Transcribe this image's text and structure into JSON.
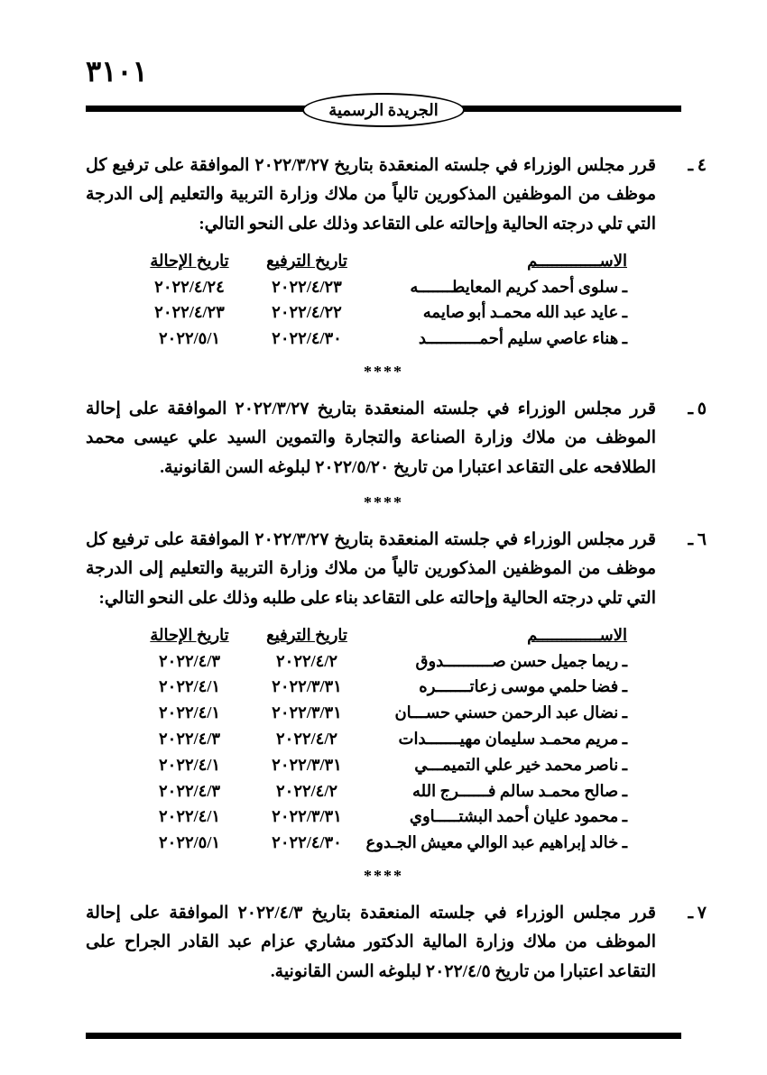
{
  "page_number": "٣١٠١",
  "masthead": "الجريدة الرسمية",
  "separator": "****",
  "items": [
    {
      "num": "٤ ـ",
      "text": "قرر مجلس الوزراء في جلسته المنعقدة بتاريخ ٢٠٢٢/٣/٢٧ الموافقة على ترفيع كل موظف من الموظفين المذكورين تالياً من ملاك وزارة التربية والتعليم إلى الدرجة التي تلي درجته الحالية وإحالته على التقاعد وذلك على النحو التالي:",
      "table": {
        "headers": {
          "name": "الاســـــــــــــم",
          "d1": "تاريخ الترفيع",
          "d2": "تاريخ الإحالة"
        },
        "rows": [
          {
            "name": "ـ سلوى أحمد كريم المعايطـــــــه",
            "d1": "٢٠٢٢/٤/٢٣",
            "d2": "٢٠٢٢/٤/٢٤"
          },
          {
            "name": "ـ عايد عبد الله محمـد أبو صايمه",
            "d1": "٢٠٢٢/٤/٢٢",
            "d2": "٢٠٢٢/٤/٢٣"
          },
          {
            "name": "ـ هناء عاصي سليم أحمـــــــــــد",
            "d1": "٢٠٢٢/٤/٣٠",
            "d2": "٢٠٢٢/٥/١"
          }
        ]
      }
    },
    {
      "num": "٥ ـ",
      "text": "قرر مجلس الوزراء في جلسته المنعقدة بتاريخ ٢٠٢٢/٣/٢٧ الموافقة على إحالة الموظف من ملاك وزارة الصناعة والتجارة والتموين السيد علي عيسى محمد الطلافحه على التقاعد اعتبارا من تاريخ ٢٠٢٢/٥/٢٠ لبلوغه السن القانونية."
    },
    {
      "num": "٦ ـ",
      "text": "قرر مجلس الوزراء في جلسته المنعقدة بتاريخ ٢٠٢٢/٣/٢٧ الموافقة على ترفيع كل موظف من الموظفين المذكورين تالياً من ملاك وزارة التربية والتعليم إلى الدرجة التي تلي درجته الحالية وإحالته على التقاعد بناء على طلبه وذلك على النحو التالي:",
      "table": {
        "headers": {
          "name": "الاســـــــــــــم",
          "d1": "تاريخ الترفيع",
          "d2": "تاريخ الإحالة"
        },
        "rows": [
          {
            "name": "ـ ريما جميل حسن صــــــــــدوق",
            "d1": "٢٠٢٢/٤/٢",
            "d2": "٢٠٢٢/٤/٣"
          },
          {
            "name": "ـ فضا حلمي موسى زعاتـــــــره",
            "d1": "٢٠٢٢/٣/٣١",
            "d2": "٢٠٢٢/٤/١"
          },
          {
            "name": "ـ نضال عبد الرحمن حسني حســـان",
            "d1": "٢٠٢٢/٣/٣١",
            "d2": "٢٠٢٢/٤/١"
          },
          {
            "name": "ـ مريم محمـد سليمان مهيـــــــدات",
            "d1": "٢٠٢٢/٤/٢",
            "d2": "٢٠٢٢/٤/٣"
          },
          {
            "name": "ـ ناصر محمد خير علي التميمـــي",
            "d1": "٢٠٢٢/٣/٣١",
            "d2": "٢٠٢٢/٤/١"
          },
          {
            "name": "ـ صالح محمـد سالم فــــــرج الله",
            "d1": "٢٠٢٢/٤/٢",
            "d2": "٢٠٢٢/٤/٣"
          },
          {
            "name": "ـ محمود عليان أحمد البشتـــــاوي",
            "d1": "٢٠٢٢/٣/٣١",
            "d2": "٢٠٢٢/٤/١"
          },
          {
            "name": "ـ خالد إبراهيم عبد الوالي معيش الجـدوع",
            "d1": "٢٠٢٢/٤/٣٠",
            "d2": "٢٠٢٢/٥/١"
          }
        ]
      }
    },
    {
      "num": "٧ ـ",
      "text": "قرر مجلس الوزراء في جلسته المنعقدة بتاريخ ٢٠٢٢/٤/٣ الموافقة على إحالة الموظف من ملاك وزارة المالية الدكتور مشاري عزام عبد القادر الجراح على التقاعد اعتبارا من تاريخ ٢٠٢٢/٤/٥ لبلوغه السن القانونية."
    }
  ]
}
